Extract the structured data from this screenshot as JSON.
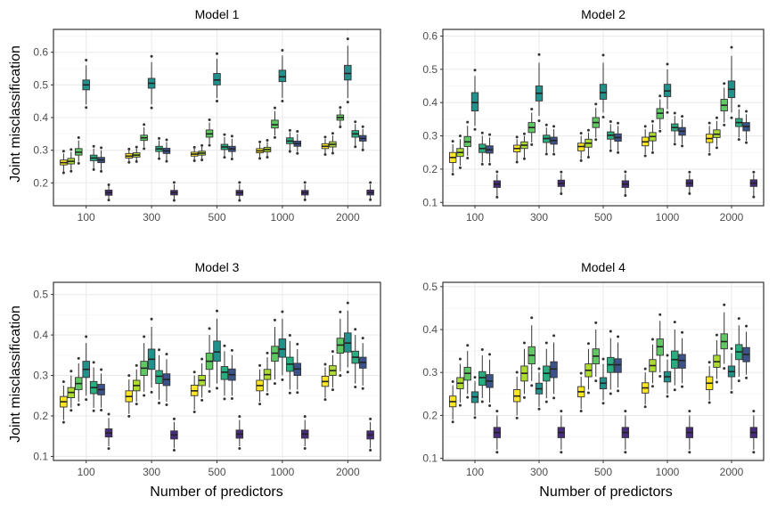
{
  "labels": {
    "ylabel": "Joint misclassification",
    "xlabel": "Number of predictors"
  },
  "chart_data": [
    {
      "type": "box",
      "title": "Model 1",
      "categories": [
        "100",
        "300",
        "500",
        "1000",
        "2000"
      ],
      "ylim": [
        0.13,
        0.67
      ],
      "yticks": [
        0.2,
        0.3,
        0.4,
        0.5,
        0.6
      ],
      "ytick_labels": [
        "0.2",
        "0.3",
        "0.4",
        "0.5",
        "0.6"
      ],
      "ylabel": "Joint misclassification",
      "xlabel": "",
      "methods": 7,
      "boxes": [
        [
          [
            0.235,
            0.255,
            0.262,
            0.27,
            0.29
          ],
          [
            0.24,
            0.258,
            0.266,
            0.275,
            0.295
          ],
          [
            0.265,
            0.285,
            0.294,
            0.305,
            0.33
          ],
          [
            0.44,
            0.485,
            0.5,
            0.515,
            0.56
          ],
          [
            0.245,
            0.268,
            0.276,
            0.285,
            0.305
          ],
          [
            0.24,
            0.262,
            0.27,
            0.278,
            0.3
          ],
          [
            0.15,
            0.162,
            0.17,
            0.178,
            0.19
          ]
        ],
        [
          [
            0.265,
            0.276,
            0.282,
            0.29,
            0.3
          ],
          [
            0.268,
            0.279,
            0.285,
            0.292,
            0.305
          ],
          [
            0.31,
            0.33,
            0.338,
            0.346,
            0.37
          ],
          [
            0.44,
            0.49,
            0.505,
            0.52,
            0.57
          ],
          [
            0.278,
            0.296,
            0.304,
            0.312,
            0.33
          ],
          [
            0.27,
            0.29,
            0.298,
            0.306,
            0.325
          ],
          [
            0.15,
            0.163,
            0.17,
            0.177,
            0.195
          ]
        ],
        [
          [
            0.27,
            0.282,
            0.288,
            0.294,
            0.305
          ],
          [
            0.273,
            0.285,
            0.291,
            0.297,
            0.31
          ],
          [
            0.32,
            0.34,
            0.35,
            0.362,
            0.385
          ],
          [
            0.46,
            0.5,
            0.515,
            0.535,
            0.58
          ],
          [
            0.283,
            0.302,
            0.31,
            0.318,
            0.34
          ],
          [
            0.278,
            0.296,
            0.304,
            0.312,
            0.335
          ],
          [
            0.15,
            0.162,
            0.17,
            0.177,
            0.195
          ]
        ],
        [
          [
            0.278,
            0.292,
            0.298,
            0.305,
            0.32
          ],
          [
            0.282,
            0.295,
            0.302,
            0.309,
            0.325
          ],
          [
            0.345,
            0.368,
            0.378,
            0.392,
            0.42
          ],
          [
            0.46,
            0.51,
            0.525,
            0.545,
            0.59
          ],
          [
            0.3,
            0.32,
            0.328,
            0.338,
            0.355
          ],
          [
            0.295,
            0.312,
            0.32,
            0.328,
            0.35
          ],
          [
            0.152,
            0.163,
            0.17,
            0.177,
            0.195
          ]
        ],
        [
          [
            0.29,
            0.305,
            0.312,
            0.32,
            0.335
          ],
          [
            0.295,
            0.31,
            0.318,
            0.326,
            0.345
          ],
          [
            0.375,
            0.392,
            0.4,
            0.408,
            0.425
          ],
          [
            0.46,
            0.515,
            0.535,
            0.56,
            0.62
          ],
          [
            0.315,
            0.34,
            0.35,
            0.36,
            0.38
          ],
          [
            0.305,
            0.328,
            0.336,
            0.345,
            0.365
          ],
          [
            0.152,
            0.163,
            0.17,
            0.178,
            0.195
          ]
        ]
      ]
    },
    {
      "type": "box",
      "title": "Model 2",
      "categories": [
        "100",
        "300",
        "500",
        "1000",
        "2000"
      ],
      "ylim": [
        0.09,
        0.62
      ],
      "yticks": [
        0.1,
        0.2,
        0.3,
        0.4,
        0.5,
        0.6
      ],
      "ytick_labels": [
        "0.1",
        "0.2",
        "0.3",
        "0.4",
        "0.5",
        "0.6"
      ],
      "ylabel": "",
      "xlabel": "",
      "methods": 7,
      "boxes": [
        [
          [
            0.19,
            0.22,
            0.235,
            0.25,
            0.275
          ],
          [
            0.21,
            0.238,
            0.25,
            0.262,
            0.29
          ],
          [
            0.24,
            0.268,
            0.282,
            0.298,
            0.33
          ],
          [
            0.33,
            0.375,
            0.4,
            0.43,
            0.48
          ],
          [
            0.22,
            0.25,
            0.262,
            0.275,
            0.3
          ],
          [
            0.22,
            0.248,
            0.258,
            0.27,
            0.295
          ],
          [
            0.12,
            0.145,
            0.155,
            0.165,
            0.185
          ]
        ],
        [
          [
            0.225,
            0.252,
            0.262,
            0.272,
            0.29
          ],
          [
            0.235,
            0.262,
            0.272,
            0.282,
            0.3
          ],
          [
            0.28,
            0.31,
            0.325,
            0.34,
            0.37
          ],
          [
            0.36,
            0.405,
            0.428,
            0.45,
            0.52
          ],
          [
            0.25,
            0.28,
            0.292,
            0.302,
            0.325
          ],
          [
            0.25,
            0.275,
            0.286,
            0.296,
            0.32
          ],
          [
            0.13,
            0.148,
            0.157,
            0.167,
            0.185
          ]
        ],
        [
          [
            0.23,
            0.255,
            0.268,
            0.278,
            0.3
          ],
          [
            0.24,
            0.266,
            0.278,
            0.29,
            0.31
          ],
          [
            0.295,
            0.325,
            0.34,
            0.355,
            0.385
          ],
          [
            0.37,
            0.41,
            0.43,
            0.455,
            0.52
          ],
          [
            0.26,
            0.29,
            0.302,
            0.312,
            0.335
          ],
          [
            0.255,
            0.284,
            0.295,
            0.306,
            0.33
          ],
          [
            0.125,
            0.145,
            0.155,
            0.165,
            0.185
          ]
        ],
        [
          [
            0.245,
            0.27,
            0.282,
            0.296,
            0.32
          ],
          [
            0.255,
            0.285,
            0.298,
            0.31,
            0.335
          ],
          [
            0.32,
            0.352,
            0.368,
            0.382,
            0.41
          ],
          [
            0.38,
            0.418,
            0.435,
            0.455,
            0.5
          ],
          [
            0.28,
            0.315,
            0.325,
            0.336,
            0.36
          ],
          [
            0.275,
            0.302,
            0.314,
            0.325,
            0.35
          ],
          [
            0.13,
            0.148,
            0.158,
            0.168,
            0.185
          ]
        ],
        [
          [
            0.25,
            0.28,
            0.292,
            0.305,
            0.33
          ],
          [
            0.27,
            0.295,
            0.305,
            0.318,
            0.345
          ],
          [
            0.34,
            0.375,
            0.392,
            0.41,
            0.445
          ],
          [
            0.37,
            0.415,
            0.44,
            0.465,
            0.54
          ],
          [
            0.295,
            0.328,
            0.34,
            0.352,
            0.38
          ],
          [
            0.285,
            0.315,
            0.328,
            0.34,
            0.365
          ],
          [
            0.12,
            0.148,
            0.158,
            0.168,
            0.185
          ]
        ]
      ]
    },
    {
      "type": "box",
      "title": "Model 3",
      "categories": [
        "100",
        "300",
        "500",
        "1000",
        "2000"
      ],
      "ylim": [
        0.09,
        0.53
      ],
      "yticks": [
        0.1,
        0.2,
        0.3,
        0.4,
        0.5
      ],
      "ytick_labels": [
        "0.1",
        "0.2",
        "0.3",
        "0.4",
        "0.5"
      ],
      "ylabel": "Joint misclassification",
      "xlabel": "Number of predictors",
      "methods": 7,
      "boxes": [
        [
          [
            0.19,
            0.222,
            0.235,
            0.248,
            0.275
          ],
          [
            0.22,
            0.245,
            0.258,
            0.27,
            0.3
          ],
          [
            0.235,
            0.265,
            0.28,
            0.295,
            0.33
          ],
          [
            0.25,
            0.295,
            0.315,
            0.335,
            0.38
          ],
          [
            0.22,
            0.255,
            0.27,
            0.285,
            0.32
          ],
          [
            0.22,
            0.252,
            0.265,
            0.278,
            0.305
          ],
          [
            0.125,
            0.148,
            0.158,
            0.168,
            0.195
          ]
        ],
        [
          [
            0.205,
            0.235,
            0.248,
            0.262,
            0.29
          ],
          [
            0.235,
            0.262,
            0.275,
            0.288,
            0.315
          ],
          [
            0.26,
            0.3,
            0.318,
            0.335,
            0.38
          ],
          [
            0.27,
            0.315,
            0.34,
            0.365,
            0.42
          ],
          [
            0.24,
            0.28,
            0.298,
            0.312,
            0.35
          ],
          [
            0.235,
            0.275,
            0.29,
            0.304,
            0.34
          ],
          [
            0.12,
            0.143,
            0.153,
            0.163,
            0.185
          ]
        ],
        [
          [
            0.215,
            0.25,
            0.262,
            0.276,
            0.3
          ],
          [
            0.245,
            0.275,
            0.288,
            0.3,
            0.33
          ],
          [
            0.27,
            0.315,
            0.335,
            0.355,
            0.4
          ],
          [
            0.28,
            0.335,
            0.358,
            0.385,
            0.44
          ],
          [
            0.25,
            0.29,
            0.308,
            0.322,
            0.36
          ],
          [
            0.25,
            0.288,
            0.302,
            0.316,
            0.35
          ],
          [
            0.125,
            0.145,
            0.155,
            0.165,
            0.19
          ]
        ],
        [
          [
            0.235,
            0.262,
            0.275,
            0.288,
            0.315
          ],
          [
            0.26,
            0.29,
            0.302,
            0.315,
            0.345
          ],
          [
            0.29,
            0.335,
            0.355,
            0.372,
            0.42
          ],
          [
            0.3,
            0.345,
            0.365,
            0.39,
            0.44
          ],
          [
            0.265,
            0.31,
            0.328,
            0.345,
            0.385
          ],
          [
            0.265,
            0.3,
            0.316,
            0.33,
            0.365
          ],
          [
            0.125,
            0.145,
            0.155,
            0.165,
            0.19
          ]
        ],
        [
          [
            0.245,
            0.273,
            0.285,
            0.298,
            0.32
          ],
          [
            0.27,
            0.3,
            0.312,
            0.324,
            0.35
          ],
          [
            0.31,
            0.355,
            0.375,
            0.392,
            0.44
          ],
          [
            0.32,
            0.358,
            0.38,
            0.405,
            0.46
          ],
          [
            0.28,
            0.33,
            0.345,
            0.36,
            0.4
          ],
          [
            0.275,
            0.318,
            0.332,
            0.345,
            0.38
          ],
          [
            0.12,
            0.143,
            0.153,
            0.163,
            0.185
          ]
        ]
      ]
    },
    {
      "type": "box",
      "title": "Model 4",
      "categories": [
        "100",
        "300",
        "500",
        "1000",
        "2000"
      ],
      "ylim": [
        0.095,
        0.51
      ],
      "yticks": [
        0.1,
        0.2,
        0.3,
        0.4,
        0.5
      ],
      "ytick_labels": [
        "0.1",
        "0.2",
        "0.3",
        "0.4",
        "0.5"
      ],
      "ylabel": "",
      "xlabel": "Number of predictors",
      "methods": 7,
      "boxes": [
        [
          [
            0.19,
            0.22,
            0.232,
            0.245,
            0.27
          ],
          [
            0.23,
            0.262,
            0.275,
            0.288,
            0.32
          ],
          [
            0.25,
            0.282,
            0.298,
            0.312,
            0.35
          ],
          [
            0.2,
            0.23,
            0.243,
            0.255,
            0.28
          ],
          [
            0.24,
            0.27,
            0.288,
            0.302,
            0.34
          ],
          [
            0.23,
            0.265,
            0.28,
            0.295,
            0.33
          ],
          [
            0.12,
            0.148,
            0.16,
            0.172,
            0.2
          ]
        ],
        [
          [
            0.2,
            0.232,
            0.245,
            0.26,
            0.29
          ],
          [
            0.25,
            0.28,
            0.298,
            0.315,
            0.355
          ],
          [
            0.28,
            0.32,
            0.34,
            0.36,
            0.41
          ],
          [
            0.22,
            0.25,
            0.262,
            0.275,
            0.3
          ],
          [
            0.24,
            0.28,
            0.298,
            0.315,
            0.355
          ],
          [
            0.25,
            0.288,
            0.308,
            0.325,
            0.37
          ],
          [
            0.12,
            0.148,
            0.16,
            0.172,
            0.2
          ]
        ],
        [
          [
            0.215,
            0.243,
            0.255,
            0.267,
            0.29
          ],
          [
            0.26,
            0.29,
            0.305,
            0.32,
            0.355
          ],
          [
            0.29,
            0.32,
            0.338,
            0.355,
            0.4
          ],
          [
            0.235,
            0.262,
            0.275,
            0.288,
            0.32
          ],
          [
            0.26,
            0.3,
            0.318,
            0.335,
            0.38
          ],
          [
            0.265,
            0.3,
            0.318,
            0.332,
            0.37
          ],
          [
            0.12,
            0.148,
            0.16,
            0.172,
            0.2
          ]
        ],
        [
          [
            0.225,
            0.252,
            0.264,
            0.276,
            0.3
          ],
          [
            0.275,
            0.302,
            0.316,
            0.33,
            0.365
          ],
          [
            0.3,
            0.34,
            0.36,
            0.378,
            0.42
          ],
          [
            0.25,
            0.278,
            0.29,
            0.302,
            0.33
          ],
          [
            0.27,
            0.31,
            0.33,
            0.35,
            0.4
          ],
          [
            0.275,
            0.31,
            0.328,
            0.342,
            0.38
          ],
          [
            0.12,
            0.148,
            0.16,
            0.172,
            0.2
          ]
        ],
        [
          [
            0.235,
            0.26,
            0.275,
            0.29,
            0.315
          ],
          [
            0.285,
            0.312,
            0.325,
            0.34,
            0.375
          ],
          [
            0.32,
            0.355,
            0.372,
            0.39,
            0.44
          ],
          [
            0.26,
            0.29,
            0.302,
            0.315,
            0.345
          ],
          [
            0.29,
            0.33,
            0.348,
            0.365,
            0.41
          ],
          [
            0.295,
            0.325,
            0.342,
            0.358,
            0.395
          ],
          [
            0.12,
            0.148,
            0.16,
            0.172,
            0.2
          ]
        ]
      ]
    }
  ],
  "colors": {
    "methods": [
      "#fde725",
      "#addc30",
      "#5ec962",
      "#21918c",
      "#28ae80",
      "#3b528b",
      "#472d7b"
    ],
    "grid_major": "#ebebeb",
    "grid_minor": "#f5f5f5",
    "text": "#000000",
    "tick_text": "#4d4d4d",
    "outlier": "#333333"
  }
}
